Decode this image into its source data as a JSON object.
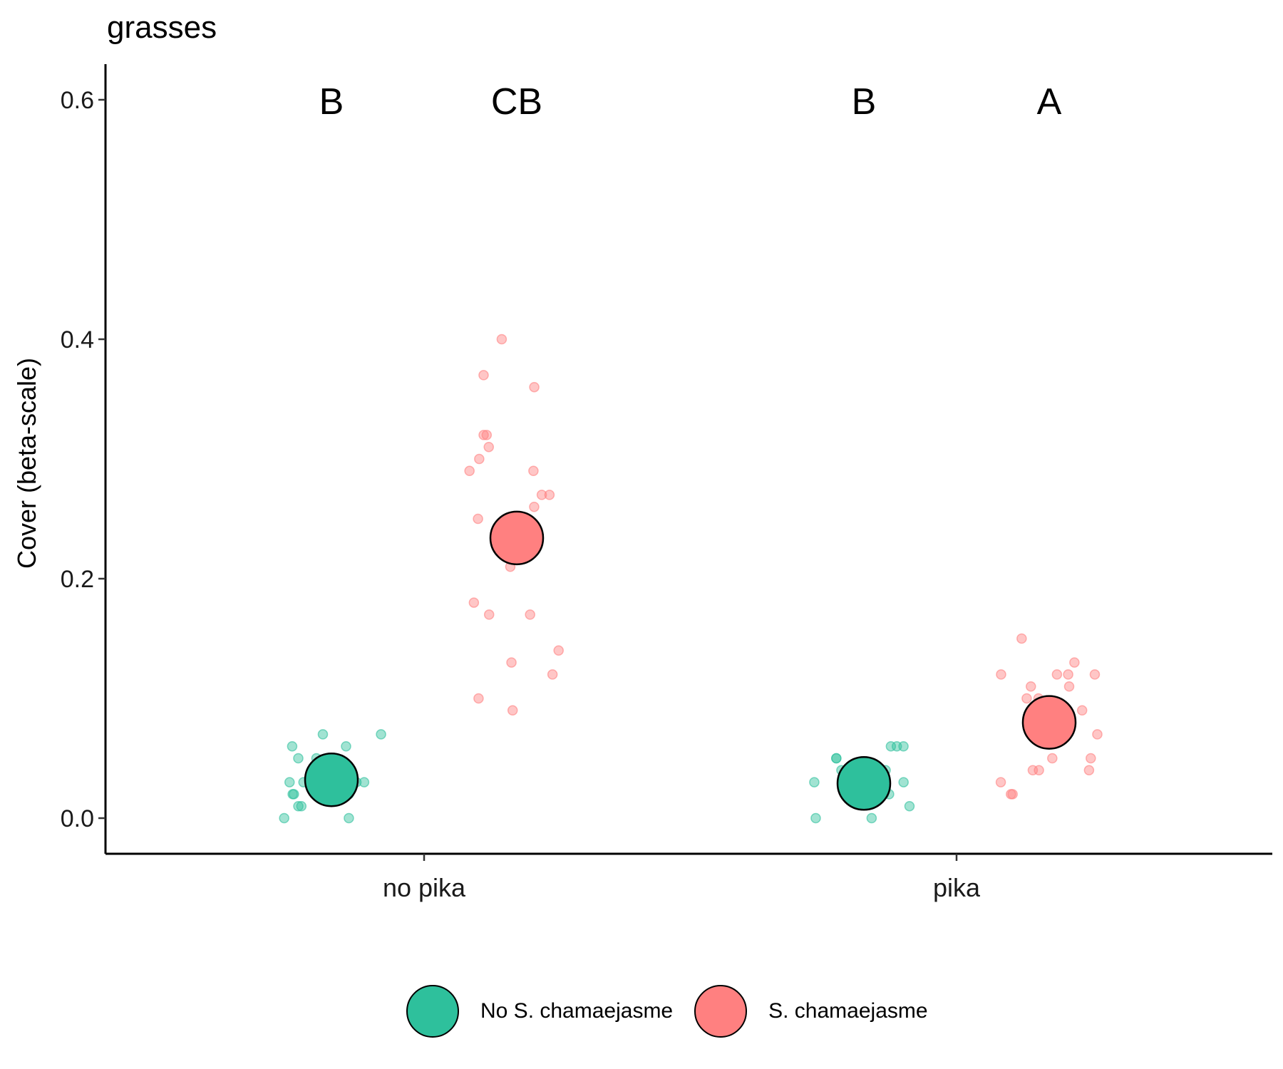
{
  "title": "grasses",
  "colors": {
    "no_s": "#2EC09C",
    "s": "#FF8080"
  },
  "chart_data": {
    "type": "scatter",
    "title": "grasses",
    "xlabel": "",
    "ylabel": "Cover (beta-scale)",
    "categories": [
      "no pika",
      "pika"
    ],
    "ylim": [
      -0.03,
      0.63
    ],
    "yticks": [
      0.0,
      0.2,
      0.4,
      0.6
    ],
    "ytick_labels": [
      "0.0",
      "0.2",
      "0.4",
      "0.6"
    ],
    "grid": false,
    "legend_position": "bottom",
    "series": [
      {
        "name": "No S. chamaejasme",
        "color": "#2EC09C",
        "means": [
          0.032,
          0.029
        ],
        "letters": [
          "B",
          "B"
        ],
        "points": [
          [
            0.07,
            0.06,
            0.06,
            0.07,
            0.04,
            0.04,
            0.03,
            0.05,
            0.05,
            0.02,
            0.01,
            0.01,
            0.03,
            0.02,
            0.02,
            0.0,
            0.03,
            0.03,
            0.0,
            0.02,
            0.05
          ],
          [
            0.06,
            0.05,
            0.06,
            0.04,
            0.04,
            0.03,
            0.03,
            0.05,
            0.02,
            0.02,
            0.0,
            0.01,
            0.0,
            0.02,
            0.02,
            0.04,
            0.03,
            0.04,
            0.06
          ]
        ]
      },
      {
        "name": "S. chamaejasme",
        "color": "#FF8080",
        "means": [
          0.234,
          0.08
        ],
        "letters": [
          "CB",
          "A"
        ],
        "points": [
          [
            0.4,
            0.37,
            0.36,
            0.32,
            0.32,
            0.31,
            0.3,
            0.29,
            0.29,
            0.27,
            0.27,
            0.26,
            0.25,
            0.25,
            0.24,
            0.21,
            0.18,
            0.17,
            0.17,
            0.14,
            0.13,
            0.12,
            0.1,
            0.09
          ],
          [
            0.15,
            0.13,
            0.12,
            0.12,
            0.12,
            0.12,
            0.11,
            0.11,
            0.1,
            0.1,
            0.09,
            0.09,
            0.08,
            0.07,
            0.07,
            0.05,
            0.05,
            0.04,
            0.04,
            0.04,
            0.03,
            0.02,
            0.02
          ]
        ]
      }
    ]
  },
  "legend": {
    "items": [
      {
        "label": "No S. chamaejasme"
      },
      {
        "label": "S. chamaejasme"
      }
    ]
  }
}
